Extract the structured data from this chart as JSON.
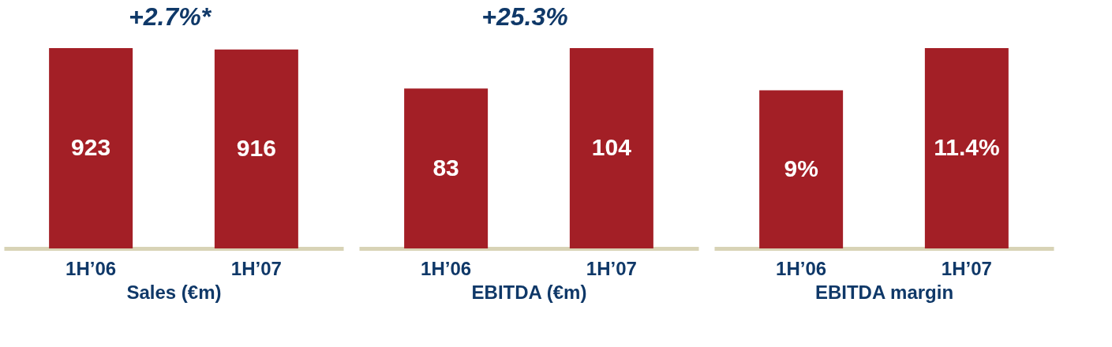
{
  "chart_data": [
    {
      "type": "bar",
      "categories": [
        "1H’06",
        "1H’07"
      ],
      "values": [
        923,
        916
      ],
      "color": "#a31f26",
      "data_labels": true,
      "xlabel": "Sales (€m)",
      "annotations": [
        "+2.7%*"
      ],
      "grid": false
    },
    {
      "type": "bar",
      "categories": [
        "1H’06",
        "1H’07"
      ],
      "values": [
        83,
        104
      ],
      "color": "#a31f26",
      "data_labels": true,
      "xlabel": "EBITDA (€m)",
      "annotations": [
        "+25.3%"
      ],
      "grid": false
    },
    {
      "type": "bar",
      "categories": [
        "1H’06",
        "1H’07"
      ],
      "values": [
        9,
        11.4
      ],
      "color": "#a31f26",
      "value_labels": [
        "9%",
        "11.4%"
      ],
      "xlabel": "EBITDA margin",
      "grid": false
    }
  ]
}
